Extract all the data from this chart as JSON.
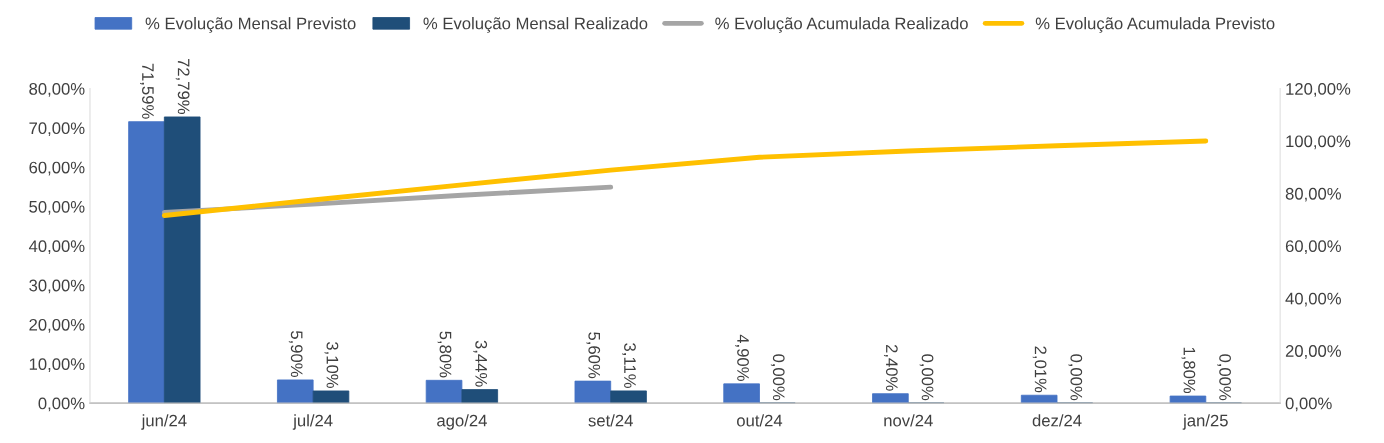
{
  "chart_data": {
    "type": "bar",
    "categories": [
      "jun/24",
      "jul/24",
      "ago/24",
      "set/24",
      "out/24",
      "nov/24",
      "dez/24",
      "jan/25"
    ],
    "series": [
      {
        "name": "% Evolução Mensal Previsto",
        "color": "#4472c4",
        "values": [
          71.59,
          5.9,
          5.8,
          5.6,
          4.9,
          2.4,
          2.01,
          1.8
        ],
        "value_labels": [
          "71,59%",
          "5,90%",
          "5,80%",
          "5,60%",
          "4,90%",
          "2,40%",
          "2,01%",
          "1,80%"
        ]
      },
      {
        "name": "% Evolução Mensal Realizado",
        "color": "#1f4e79",
        "values": [
          72.79,
          3.1,
          3.44,
          3.11,
          0,
          0,
          0,
          0
        ],
        "value_labels": [
          "72,79%",
          "3,10%",
          "3,44%",
          "3,11%",
          "0,00%",
          "0,00%",
          "0,00%",
          "0,00%"
        ]
      },
      {
        "name": "% Evolução Acumulada Realizado",
        "type": "line",
        "axis": "y2",
        "color": "#a5a5a5",
        "values": [
          72.8,
          75.9,
          79.3,
          82.4,
          null,
          null,
          null,
          null
        ]
      },
      {
        "name": "% Evolução Acumulada Previsto",
        "type": "line",
        "axis": "y2",
        "color": "#ffc000",
        "values": [
          71.6,
          77.5,
          83.3,
          88.9,
          93.8,
          96.2,
          98.2,
          100.0
        ]
      }
    ],
    "ylim": [
      0,
      80
    ],
    "yticks": [
      {
        "value": 0,
        "label": "0,00%"
      },
      {
        "value": 10,
        "label": "10,00%"
      },
      {
        "value": 20,
        "label": "20,00%"
      },
      {
        "value": 30,
        "label": "30,00%"
      },
      {
        "value": 40,
        "label": "40,00%"
      },
      {
        "value": 50,
        "label": "50,00%"
      },
      {
        "value": 60,
        "label": "60,00%"
      },
      {
        "value": 70,
        "label": "70,00%"
      },
      {
        "value": 80,
        "label": "80,00%"
      }
    ],
    "y2lim": [
      0,
      120
    ],
    "y2ticks": [
      {
        "value": 0,
        "label": "0,00%"
      },
      {
        "value": 20,
        "label": "20,00%"
      },
      {
        "value": 40,
        "label": "40,00%"
      },
      {
        "value": 60,
        "label": "60,00%"
      },
      {
        "value": 80,
        "label": "80,00%"
      },
      {
        "value": 100,
        "label": "100,00%"
      },
      {
        "value": 120,
        "label": "120,00%"
      }
    ],
    "grid": false,
    "legend": "top"
  }
}
